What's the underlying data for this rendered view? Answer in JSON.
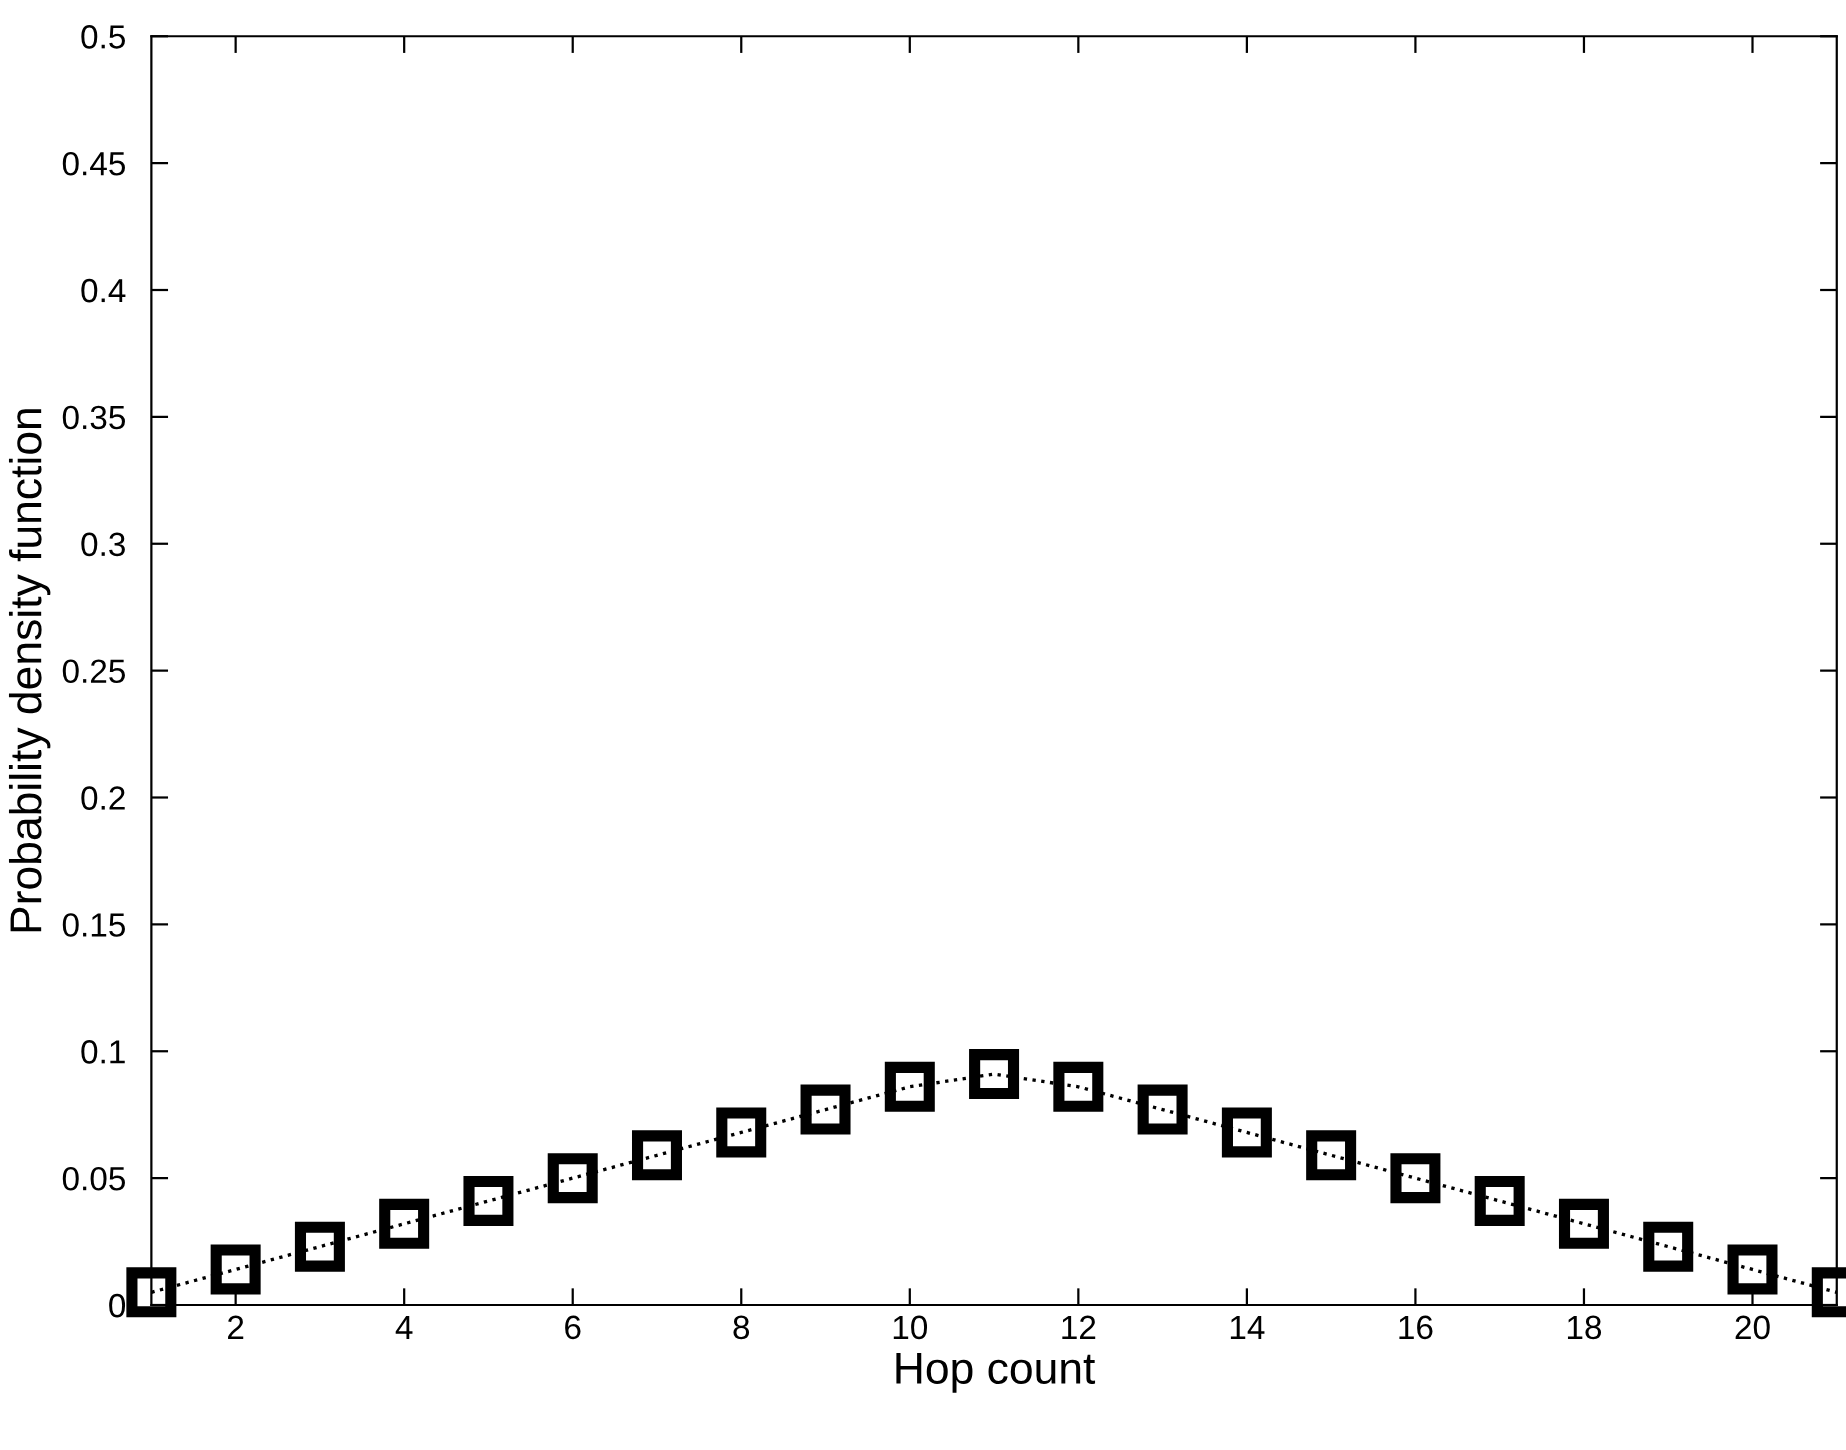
{
  "chart_data": {
    "type": "line",
    "xlabel": "Hop count",
    "ylabel": "Probability density function",
    "x": [
      1,
      2,
      3,
      4,
      5,
      6,
      7,
      8,
      9,
      10,
      11,
      12,
      13,
      14,
      15,
      16,
      17,
      18,
      19,
      20,
      21
    ],
    "series": [
      {
        "color": "#000000",
        "values": [
          0.005,
          0.014,
          0.023,
          0.032,
          0.041,
          0.05,
          0.059,
          0.068,
          0.077,
          0.086,
          0.091,
          0.086,
          0.077,
          0.068,
          0.059,
          0.05,
          0.041,
          0.032,
          0.023,
          0.014,
          0.005
        ]
      }
    ],
    "xlim": [
      1,
      21
    ],
    "xticks": [
      2,
      4,
      6,
      8,
      10,
      12,
      14,
      16,
      18,
      20
    ],
    "ylim": [
      0,
      0.5
    ],
    "yticks": [
      0,
      0.05,
      0.1,
      0.15,
      0.2,
      0.25,
      0.3,
      0.35,
      0.4,
      0.45,
      0.5
    ],
    "marker": "square",
    "line_style": "dotted",
    "grid": false,
    "legend": false
  }
}
